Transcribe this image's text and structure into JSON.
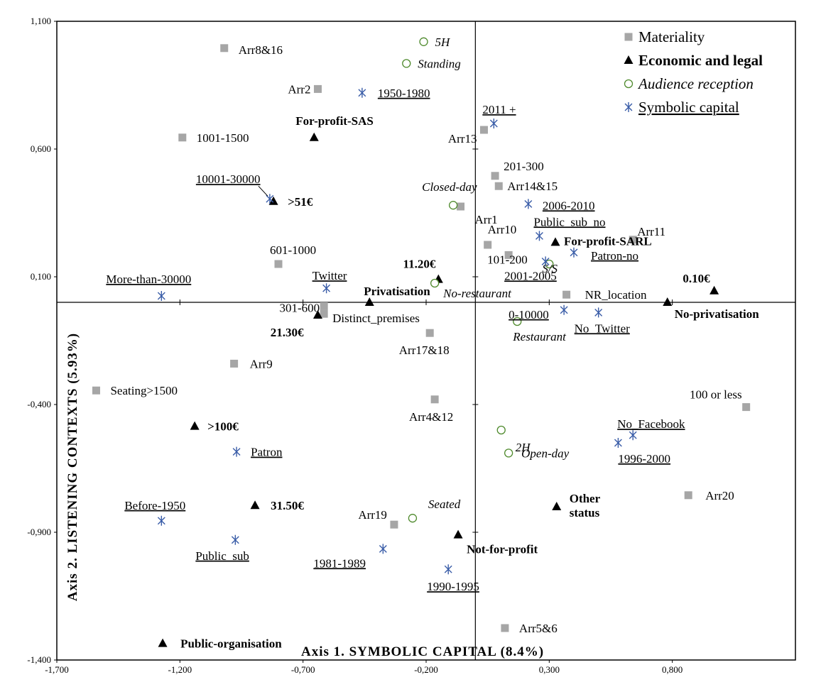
{
  "chart_data": {
    "type": "scatter",
    "xlabel": "Axis 1. SYMBOLIC  CAPITAL  (8.4%)",
    "ylabel": "Axis 2. LISTENING  CONTEXTS  (5.93%)",
    "xlim": [
      -1.7,
      1.3
    ],
    "ylim": [
      -1.4,
      1.1
    ],
    "x_ticks": [
      {
        "value": -1.7,
        "label": "-1,700"
      },
      {
        "value": -1.2,
        "label": "-1,200"
      },
      {
        "value": -0.7,
        "label": "-0,700"
      },
      {
        "value": -0.2,
        "label": "-0,200"
      },
      {
        "value": 0.3,
        "label": "0,300"
      },
      {
        "value": 0.8,
        "label": "0,800"
      }
    ],
    "y_ticks": [
      {
        "value": 1.1,
        "label": "1,100"
      },
      {
        "value": 0.6,
        "label": "0,600"
      },
      {
        "value": 0.1,
        "label": "0,100"
      },
      {
        "value": -0.4,
        "label": "-0,400"
      },
      {
        "value": -0.9,
        "label": "-0,900"
      },
      {
        "value": -1.4,
        "label": "-1,400"
      }
    ],
    "legend_position": "top-right",
    "series": [
      {
        "name": "Materiality",
        "marker": "square",
        "color": "#a6a6a6",
        "label_style": "normal",
        "points": [
          {
            "label": "Arr8&16",
            "x": -1.02,
            "y": 0.995
          },
          {
            "label": "Arr2",
            "x": -0.64,
            "y": 0.835
          },
          {
            "label": "1001-1500",
            "x": -1.19,
            "y": 0.645
          },
          {
            "label": "Arr13",
            "x": 0.035,
            "y": 0.675
          },
          {
            "label": "201-300",
            "x": 0.08,
            "y": 0.495
          },
          {
            "label": "Arr14&15",
            "x": 0.095,
            "y": 0.455
          },
          {
            "label": "Arr1",
            "x": -0.06,
            "y": 0.375
          },
          {
            "label": "Arr10",
            "x": 0.05,
            "y": 0.225
          },
          {
            "label": "101-200",
            "x": 0.135,
            "y": 0.185
          },
          {
            "label": "Arr11",
            "x": 0.64,
            "y": 0.245
          },
          {
            "label": "601-1000",
            "x": -0.8,
            "y": 0.15
          },
          {
            "label": "NR_location",
            "x": 0.37,
            "y": 0.03
          },
          {
            "label": "301-600",
            "x": -0.615,
            "y": -0.015
          },
          {
            "label": "Distinct_premises",
            "x": -0.615,
            "y": -0.045
          },
          {
            "label": "Arr17&18",
            "x": -0.185,
            "y": -0.12
          },
          {
            "label": "Arr9",
            "x": -0.98,
            "y": -0.24
          },
          {
            "label": "Seating>1500",
            "x": -1.54,
            "y": -0.345
          },
          {
            "label": "Arr4&12",
            "x": -0.165,
            "y": -0.38
          },
          {
            "label": "100 or less",
            "x": 1.1,
            "y": -0.41
          },
          {
            "label": "Arr20",
            "x": 0.865,
            "y": -0.755
          },
          {
            "label": "Arr19",
            "x": -0.33,
            "y": -0.87
          },
          {
            "label": "Arr5&6",
            "x": 0.12,
            "y": -1.275
          }
        ]
      },
      {
        "name": "Economic and legal",
        "marker": "triangle",
        "color": "#000000",
        "label_style": "bold",
        "points": [
          {
            "label": "For-profit-SAS",
            "x": -0.655,
            "y": 0.645
          },
          {
            "label": ">51€",
            "x": -0.82,
            "y": 0.395
          },
          {
            "label": "For-profit-SARL",
            "x": 0.325,
            "y": 0.235
          },
          {
            "label": "11.20€",
            "x": -0.15,
            "y": 0.09
          },
          {
            "label": "0.10€",
            "x": 0.97,
            "y": 0.045
          },
          {
            "label": "Privatisation",
            "x": -0.43,
            "y": 0.0
          },
          {
            "label": "No-privatisation",
            "x": 0.78,
            "y": 0.0
          },
          {
            "label": "21.30€",
            "x": -0.64,
            "y": -0.05
          },
          {
            "label": ">100€",
            "x": -1.14,
            "y": -0.485
          },
          {
            "label": "31.50€",
            "x": -0.895,
            "y": -0.795
          },
          {
            "label": "Other status",
            "x": 0.33,
            "y": -0.8
          },
          {
            "label": "Not-for-profit",
            "x": -0.07,
            "y": -0.91
          },
          {
            "label": "Public-organisation",
            "x": -1.27,
            "y": -1.335
          }
        ]
      },
      {
        "name": "Audience reception",
        "marker": "circle",
        "color": "#4f8a2d",
        "label_style": "italic",
        "points": [
          {
            "label": "5H",
            "x": -0.21,
            "y": 1.02
          },
          {
            "label": "Standing",
            "x": -0.28,
            "y": 0.935
          },
          {
            "label": "Closed-day",
            "x": -0.09,
            "y": 0.38
          },
          {
            "label": "S/S",
            "x": 0.3,
            "y": 0.15
          },
          {
            "label": "No-restaurant",
            "x": -0.165,
            "y": 0.075
          },
          {
            "label": "Restaurant",
            "x": 0.17,
            "y": -0.075
          },
          {
            "label": "2H",
            "x": 0.105,
            "y": -0.5
          },
          {
            "label": "Open-day",
            "x": 0.135,
            "y": -0.59
          },
          {
            "label": "Seated",
            "x": -0.255,
            "y": -0.845
          }
        ]
      },
      {
        "name": "Symbolic capital",
        "marker": "asterisk",
        "color": "#3a5da8",
        "label_style": "underline",
        "points": [
          {
            "label": "1950-1980",
            "x": -0.46,
            "y": 0.82
          },
          {
            "label": "2011 +",
            "x": 0.075,
            "y": 0.7
          },
          {
            "label": "10001-30000",
            "x": -0.835,
            "y": 0.405
          },
          {
            "label": "2006-2010",
            "x": 0.215,
            "y": 0.385
          },
          {
            "label": "Public_sub_no",
            "x": 0.26,
            "y": 0.26
          },
          {
            "label": "Patron-no",
            "x": 0.4,
            "y": 0.195
          },
          {
            "label": "2001-2005",
            "x": 0.285,
            "y": 0.16
          },
          {
            "label": "Twitter",
            "x": -0.605,
            "y": 0.055
          },
          {
            "label": "More-than-30000",
            "x": -1.275,
            "y": 0.025
          },
          {
            "label": "0-10000",
            "x": 0.36,
            "y": -0.03
          },
          {
            "label": "No_Twitter",
            "x": 0.5,
            "y": -0.04
          },
          {
            "label": "No_Facebook",
            "x": 0.64,
            "y": -0.52
          },
          {
            "label": "1996-2000",
            "x": 0.58,
            "y": -0.55
          },
          {
            "label": "Patron",
            "x": -0.97,
            "y": -0.585
          },
          {
            "label": "Before-1950",
            "x": -1.275,
            "y": -0.855
          },
          {
            "label": "Public_sub",
            "x": -0.975,
            "y": -0.93
          },
          {
            "label": "1981-1989",
            "x": -0.375,
            "y": -0.965
          },
          {
            "label": "1990-1995",
            "x": -0.11,
            "y": -1.045
          }
        ]
      }
    ]
  }
}
